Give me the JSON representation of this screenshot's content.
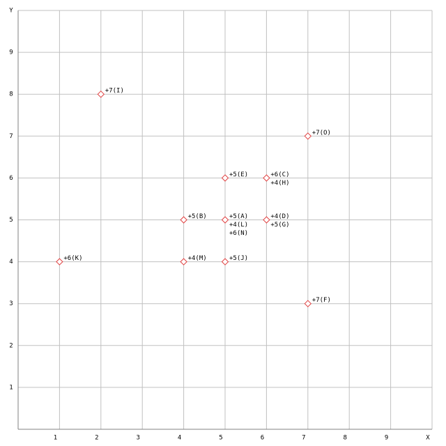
{
  "chart_data": {
    "type": "scatter",
    "x": [
      2,
      7,
      5,
      6,
      4,
      5,
      6,
      1,
      4,
      5,
      7
    ],
    "values": [
      8,
      7,
      6,
      6,
      5,
      5,
      5,
      4,
      4,
      4,
      3
    ],
    "point_labels": [
      [
        "+7(I)"
      ],
      [
        "+7(O)"
      ],
      [
        "+5(E)"
      ],
      [
        "+6(C)",
        "+4(H)"
      ],
      [
        "+5(B)"
      ],
      [
        "+5(A)",
        "+4(L)",
        "+6(N)"
      ],
      [
        "+4(D)",
        "+5(G)"
      ],
      [
        "+6(K)"
      ],
      [
        "+4(M)"
      ],
      [
        "+5(J)"
      ],
      [
        "+7(F)"
      ]
    ],
    "color": "#e04040",
    "xlim": [
      0,
      10
    ],
    "ylim": [
      0,
      10
    ],
    "xticks": [
      1,
      2,
      3,
      4,
      5,
      6,
      7,
      8,
      9,
      {
        "value": 10,
        "label": "X"
      }
    ],
    "yticks": [
      1,
      2,
      3,
      4,
      5,
      6,
      7,
      8,
      9,
      {
        "value": 10,
        "label": "Y"
      }
    ],
    "grid": true
  }
}
